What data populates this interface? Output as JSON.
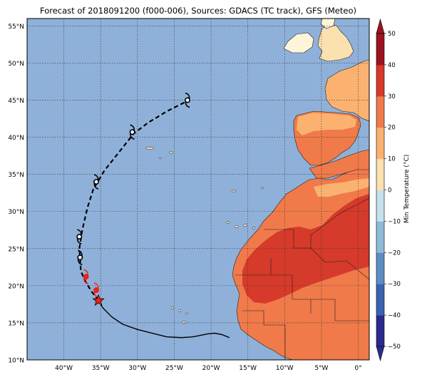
{
  "title": "Forecast of 2018091200 (f000-006), Sources: GDACS (TC track), GFS (Meteo)",
  "map": {
    "lon_range": [
      -45,
      1.5
    ],
    "lat_range": [
      10,
      56
    ],
    "lat_ticks": [
      "10°N",
      "15°N",
      "20°N",
      "25°N",
      "30°N",
      "35°N",
      "40°N",
      "45°N",
      "50°N",
      "55°N"
    ],
    "lat_values": [
      10,
      15,
      20,
      25,
      30,
      35,
      40,
      45,
      50,
      55
    ],
    "lon_ticks": [
      "40°W",
      "35°W",
      "30°W",
      "25°W",
      "20°W",
      "15°W",
      "10°W",
      "5°W",
      "0°"
    ],
    "lon_values": [
      -40,
      -35,
      -30,
      -25,
      -20,
      -15,
      -10,
      -5,
      0
    ],
    "ocean_color": "#8fb1d9",
    "grid": "dotted"
  },
  "track": {
    "observed": [
      [
        -17.5,
        13.0
      ],
      [
        -18.5,
        13.4
      ],
      [
        -19.5,
        13.6
      ],
      [
        -20.5,
        13.5
      ],
      [
        -21.5,
        13.3
      ],
      [
        -22.5,
        13.1
      ],
      [
        -24.0,
        13.0
      ],
      [
        -26.0,
        13.1
      ],
      [
        -28.0,
        13.6
      ],
      [
        -30.0,
        14.1
      ],
      [
        -32.0,
        14.8
      ],
      [
        -33.5,
        15.8
      ],
      [
        -34.7,
        17.0
      ],
      [
        -35.3,
        18.0
      ]
    ],
    "forecast": [
      [
        -35.3,
        18.0
      ],
      [
        -36.3,
        19.3
      ],
      [
        -37.2,
        20.8
      ],
      [
        -37.7,
        22.0
      ],
      [
        -37.8,
        23.8
      ],
      [
        -37.9,
        25.0
      ],
      [
        -37.5,
        27.5
      ],
      [
        -36.8,
        30.5
      ],
      [
        -36.0,
        33.0
      ],
      [
        -34.5,
        35.5
      ],
      [
        -32.5,
        38.0
      ],
      [
        -30.5,
        40.5
      ],
      [
        -28.5,
        42.0
      ],
      [
        -26.0,
        43.5
      ],
      [
        -23.0,
        45.0
      ]
    ],
    "current_position": [
      -35.3,
      18.0
    ],
    "forecast_symbols": [
      [
        -35.6,
        19.4,
        "red"
      ],
      [
        -37.0,
        21.2,
        "red"
      ],
      [
        -37.8,
        23.8,
        "black"
      ],
      [
        -37.9,
        26.6,
        "black"
      ],
      [
        -35.6,
        34.0,
        "black"
      ],
      [
        -30.7,
        40.7,
        "black"
      ],
      [
        -23.2,
        45.0,
        "black"
      ]
    ]
  },
  "colorbar": {
    "label": "Min Temperature (°C)",
    "ticks": [
      "−50",
      "−40",
      "−30",
      "−20",
      "−10",
      "0",
      "10",
      "20",
      "30",
      "40",
      "50"
    ],
    "colors": [
      "#2b2b8f",
      "#3a63b0",
      "#5d8ec3",
      "#8fbad6",
      "#c6e0ec",
      "#f4f8fb",
      "#fbe0b0",
      "#fbb270",
      "#f07a4a",
      "#d63a2a",
      "#9c1320"
    ]
  }
}
